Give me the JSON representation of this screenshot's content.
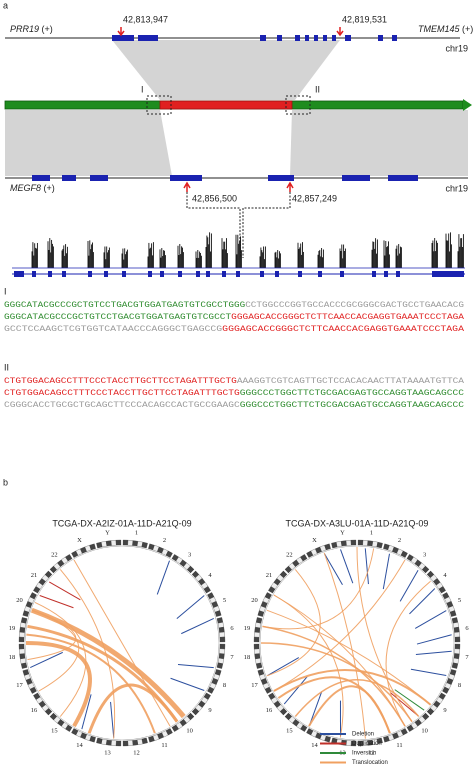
{
  "panel_labels": [
    "a",
    "b"
  ],
  "top_track": {
    "left_gene": "PRR19",
    "left_strand": "(+)",
    "right_gene": "TMEM145",
    "right_strand": "(+)",
    "chrom": "chr19",
    "breakpoints": [
      "42,813,947",
      "42,819,531"
    ]
  },
  "junctions": [
    "I",
    "II"
  ],
  "bottom_track": {
    "gene": "MEGF8",
    "strand": "(+)",
    "chrom": "chr19",
    "breakpoints": [
      "42,856,500",
      "42,857,249"
    ]
  },
  "junction_sequences": [
    {
      "label": "I",
      "lines": [
        [
          {
            "text": "GGGCATACGCCCGCTGTCCTGACGTGGATGAGTGTCGCCTGGG",
            "color": "#2e8b2e"
          },
          {
            "text": "CCTGGCCCGGTGCCACCCGCGGGCGACTGCCTGAACACG",
            "color": "#999999"
          }
        ],
        [
          {
            "text": "GGGCATACGCCCGCTGTCCTGACGTGGATGAGTGTCGCCT",
            "color": "#2e8b2e"
          },
          {
            "text": "GGGAGCACCGGGCTCTTCAACCACGAGGTGAAATCCCTAGA",
            "color": "#e02020"
          }
        ],
        [
          {
            "text": "GCCTCCAAGCTCGTGGTCATAACCCAGGGCTGAGCCG",
            "color": "#999999"
          },
          {
            "text": "GGGAGCACCGGGCTCTTCAACCACGAGGTGAAATCCCTAGA",
            "color": "#e02020"
          }
        ]
      ]
    },
    {
      "label": "II",
      "lines": [
        [
          {
            "text": "CTGTGGACAGCCTTTCCCTACCTTGCTTCCTAGATTTGCTG",
            "color": "#e02020"
          },
          {
            "text": "AAAGGTCGTCAGTTGCTCCACACAACTTATAAAATGTTCA",
            "color": "#999999"
          }
        ],
        [
          {
            "text": "CTGTGGACAGCCTTTCCCTACCTTGCTTCCTAGATTTGCTG",
            "color": "#e02020"
          },
          {
            "text": "GGGCCCTGGCTTCTGCGACGAGTGCCAGGTAAGCAGCCC",
            "color": "#2e8b2e"
          }
        ],
        [
          {
            "text": "CGGGCACCTGCGCTGCAGCTTCCCACAGCCACTGCCGAAGC",
            "color": "#999999"
          },
          {
            "text": "GGGCCCTGGCTTCTGCGACGAGTGCCAGGTAAGCAGCCC",
            "color": "#2e8b2e"
          }
        ]
      ]
    }
  ],
  "circos": [
    {
      "title": "TCGA-DX-A2IZ-01A-11D-A21Q-09",
      "chromosomes": [
        "1",
        "2",
        "3",
        "4",
        "5",
        "6",
        "7",
        "8",
        "9",
        "10",
        "11",
        "12",
        "13",
        "14",
        "15",
        "16",
        "17",
        "18",
        "19",
        "20",
        "21",
        "22",
        "X",
        "Y"
      ]
    },
    {
      "title": "TCGA-DX-A3LU-01A-11D-A21Q-09",
      "chromosomes": [
        "1",
        "2",
        "3",
        "4",
        "5",
        "6",
        "7",
        "8",
        "9",
        "10",
        "11",
        "12",
        "13",
        "14",
        "15",
        "16",
        "17",
        "18",
        "19",
        "20",
        "21",
        "22",
        "X",
        "Y"
      ]
    }
  ],
  "legend": [
    {
      "name": "Deletion",
      "color": "#2c4f9e"
    },
    {
      "name": "Duplication",
      "color": "#c0302a"
    },
    {
      "name": "Inversion",
      "color": "#2f8a3a"
    },
    {
      "name": "Translocation",
      "color": "#f0a060"
    }
  ]
}
